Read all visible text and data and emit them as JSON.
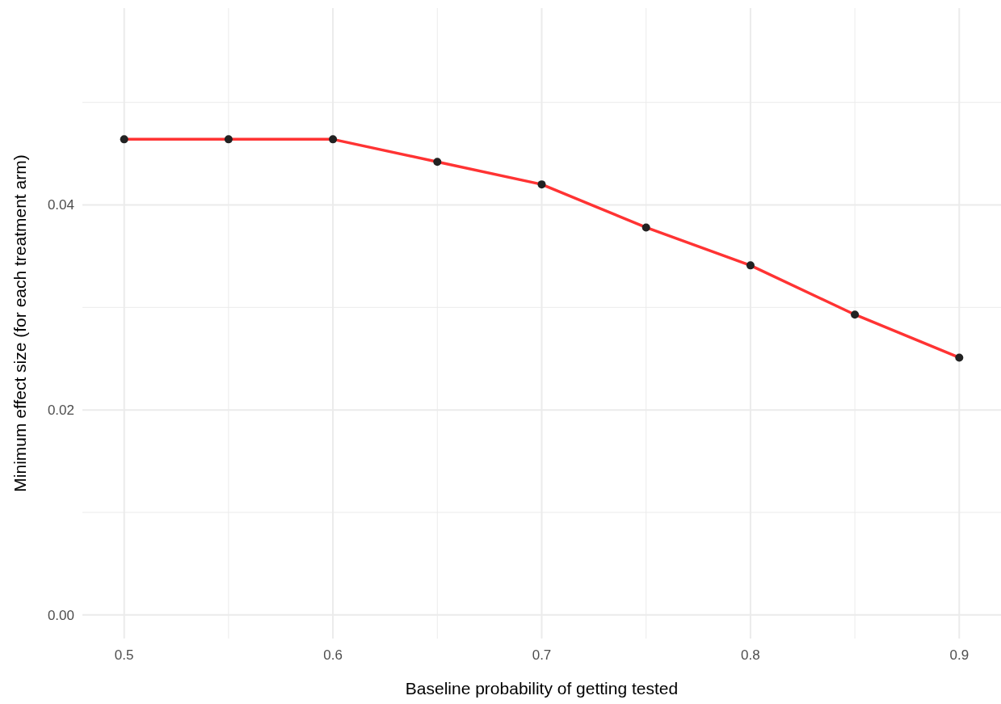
{
  "chart_data": {
    "type": "line",
    "xlabel": "Baseline probability of getting tested",
    "ylabel": "Minimum effect size (for each treatment arm)",
    "x": [
      0.5,
      0.55,
      0.6,
      0.65,
      0.7,
      0.75,
      0.8,
      0.85,
      0.9
    ],
    "series": [
      {
        "color": "#ff3333",
        "values": [
          0.0464,
          0.0464,
          0.0464,
          0.0442,
          0.042,
          0.0378,
          0.0341,
          0.0293,
          0.0251
        ]
      }
    ],
    "xlim": [
      0.48,
      0.92
    ],
    "ylim": [
      -0.0023,
      0.0592
    ],
    "xticks": [
      0.5,
      {
        "value": 0.55,
        "label": null
      },
      0.6,
      {
        "value": 0.65,
        "label": null
      },
      0.7,
      {
        "value": 0.75,
        "label": null
      },
      0.8,
      {
        "value": 0.85,
        "label": null
      },
      0.9
    ],
    "yticks": [
      {
        "value": 0,
        "label": "0.00"
      },
      {
        "value": 0.01,
        "label": null
      },
      {
        "value": 0.02,
        "label": "0.02"
      },
      {
        "value": 0.03,
        "label": null
      },
      {
        "value": 0.04,
        "label": "0.04"
      },
      {
        "value": 0.05,
        "label": null
      }
    ],
    "grid": true,
    "marker": "circle",
    "line_style": "solid"
  }
}
